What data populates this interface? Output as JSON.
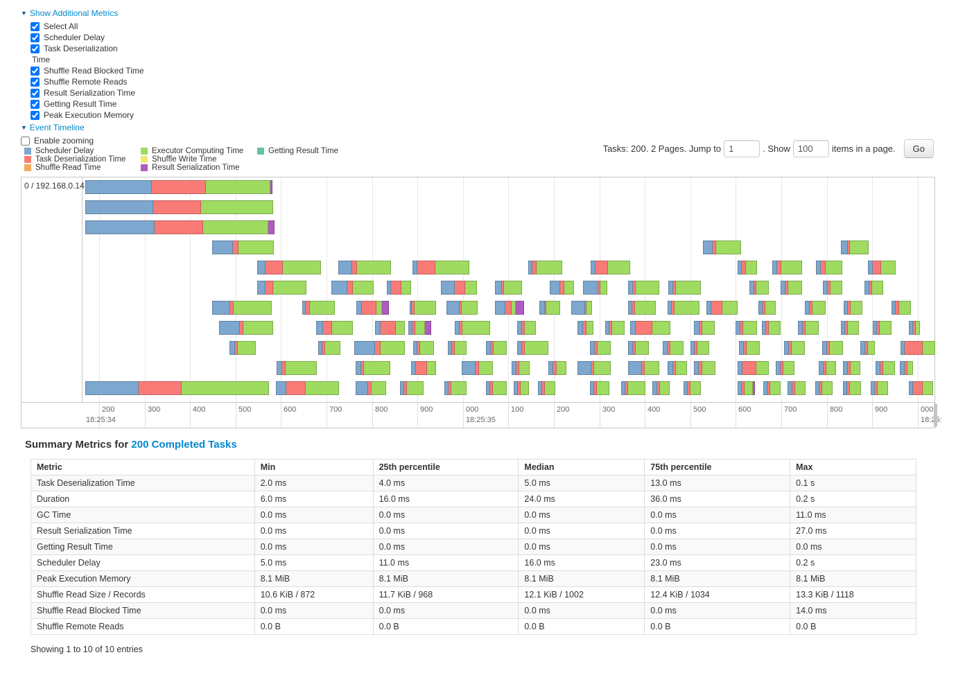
{
  "metrics_panel": {
    "title": "Show Additional Metrics",
    "items": [
      {
        "label": "Select All",
        "checked": true
      },
      {
        "label": "Scheduler Delay",
        "checked": true
      },
      {
        "label": "Task Deserialization",
        "wrap": "Time",
        "checked": true
      },
      {
        "label": "Shuffle Read Blocked Time",
        "checked": true
      },
      {
        "label": "Shuffle Remote Reads",
        "checked": true
      },
      {
        "label": "Result Serialization Time",
        "checked": true
      },
      {
        "label": "Getting Result Time",
        "checked": true
      },
      {
        "label": "Peak Execution Memory",
        "checked": true
      }
    ]
  },
  "event_timeline": {
    "title": "Event Timeline",
    "enable_zooming_label": "Enable zooming",
    "enable_zooming_checked": false
  },
  "colors": {
    "scheduler_delay": "#7DA7CE",
    "task_deserialization": "#F97B77",
    "shuffle_read": "#F5A75B",
    "executor_computing": "#9FDB61",
    "shuffle_write": "#EDEB6F",
    "result_serialization": "#AF5CBF",
    "getting_result": "#65C2A3",
    "link": "#0088cc"
  },
  "legend": {
    "items": [
      {
        "label": "Scheduler Delay",
        "key": "scheduler_delay"
      },
      {
        "label": "Task Deserialization Time",
        "key": "task_deserialization"
      },
      {
        "label": "Shuffle Read Time",
        "key": "shuffle_read"
      },
      {
        "label": "Executor Computing Time",
        "key": "executor_computing"
      },
      {
        "label": "Shuffle Write Time",
        "key": "shuffle_write"
      },
      {
        "label": "Result Serialization Time",
        "key": "result_serialization"
      },
      {
        "label": "Getting Result Time",
        "key": "getting_result"
      }
    ]
  },
  "pager": {
    "tasks_text": "Tasks: 200. 2 Pages. Jump to",
    "jump_value": "1",
    "show_text": ". Show",
    "show_value": "100",
    "items_text": "items in a page.",
    "go_label": "Go"
  },
  "timeline": {
    "group_label": "0 / 192.168.0.14",
    "axis": {
      "first_tick_ms": 200,
      "step_ms": 100,
      "tick_labels": [
        "200",
        "300",
        "400",
        "500",
        "600",
        "700",
        "800",
        "900",
        "000",
        "100",
        "200",
        "300",
        "400",
        "500",
        "600",
        "700",
        "800",
        "900",
        "000"
      ],
      "time_labels": [
        {
          "text": "18:25:34",
          "tick": 0,
          "at_left_edge": true
        },
        {
          "text": "18:25:35",
          "tick": 8
        },
        {
          "text": "18:25:",
          "tick": 18
        }
      ]
    },
    "segment_order": [
      "scheduler_delay",
      "task_deserialization",
      "executor_computing",
      "result_serialization"
    ],
    "lanes": [
      [
        [
          170,
          146,
          119,
          142,
          4
        ]
      ],
      [
        [
          170,
          149,
          105,
          159,
          0
        ]
      ],
      [
        [
          170,
          152,
          107,
          144,
          14
        ]
      ],
      [
        [
          448,
          46,
          12,
          78,
          0
        ],
        [
          1528,
          22,
          7,
          55,
          0
        ],
        [
          1831,
          15,
          5,
          41,
          0
        ]
      ],
      [
        [
          548,
          18,
          38,
          84,
          0
        ],
        [
          726,
          30,
          10,
          74,
          0
        ],
        [
          889,
          11,
          39,
          75,
          0
        ],
        [
          1144,
          9,
          9,
          56,
          0
        ],
        [
          1281,
          10,
          28,
          49,
          0
        ],
        [
          1604,
          9,
          9,
          24,
          0
        ],
        [
          1680,
          11,
          9,
          46,
          0
        ],
        [
          1776,
          11,
          10,
          37,
          0
        ],
        [
          1891,
          10,
          19,
          32,
          0
        ]
      ],
      [
        [
          548,
          19,
          17,
          73,
          0
        ],
        [
          711,
          35,
          12,
          46,
          0
        ],
        [
          833,
          9,
          23,
          21,
          0
        ],
        [
          952,
          30,
          23,
          26,
          0
        ],
        [
          1070,
          16,
          4,
          40,
          0
        ],
        [
          1191,
          23,
          9,
          21,
          0
        ],
        [
          1264,
          34,
          4,
          15,
          0
        ],
        [
          1363,
          11,
          6,
          52,
          0
        ],
        [
          1451,
          11,
          6,
          55,
          0
        ],
        [
          1630,
          11,
          4,
          28,
          0
        ],
        [
          1698,
          11,
          6,
          31,
          0
        ],
        [
          1791,
          11,
          6,
          26,
          0
        ],
        [
          1883,
          11,
          6,
          24,
          0
        ]
      ],
      [
        [
          448,
          39,
          7,
          84,
          0
        ],
        [
          647,
          7,
          9,
          55,
          0
        ],
        [
          766,
          12,
          32,
          12,
          15
        ],
        [
          883,
          5,
          6,
          47,
          0
        ],
        [
          964,
          29,
          4,
          35,
          0
        ],
        [
          1070,
          23,
          14,
          9,
          18
        ],
        [
          1168,
          12,
          3,
          31,
          0
        ],
        [
          1238,
          31,
          3,
          12,
          0
        ],
        [
          1363,
          9,
          6,
          46,
          0
        ],
        [
          1450,
          9,
          6,
          55,
          0
        ],
        [
          1535,
          10,
          24,
          34,
          0
        ],
        [
          1650,
          9,
          6,
          23,
          0
        ],
        [
          1752,
          11,
          6,
          29,
          0
        ],
        [
          1837,
          9,
          6,
          26,
          0
        ],
        [
          1942,
          9,
          7,
          26,
          0
        ]
      ],
      [
        [
          464,
          45,
          8,
          66,
          0
        ],
        [
          677,
          15,
          20,
          46,
          0
        ],
        [
          807,
          12,
          33,
          20,
          0
        ],
        [
          880,
          9,
          6,
          21,
          13
        ],
        [
          982,
          11,
          6,
          61,
          0
        ],
        [
          1119,
          11,
          6,
          24,
          0
        ],
        [
          1252,
          12,
          8,
          15,
          0
        ],
        [
          1313,
          9,
          6,
          27,
          0
        ],
        [
          1368,
          12,
          36,
          39,
          0
        ],
        [
          1508,
          12,
          6,
          28,
          0
        ],
        [
          1599,
          10,
          6,
          30,
          0
        ],
        [
          1657,
          9,
          6,
          26,
          0
        ],
        [
          1737,
          10,
          6,
          29,
          0
        ],
        [
          1831,
          9,
          6,
          25,
          0
        ],
        [
          1901,
          9,
          6,
          26,
          0
        ],
        [
          1981,
          9,
          6,
          9,
          0
        ]
      ],
      [
        [
          487,
          12,
          6,
          40,
          0
        ],
        [
          682,
          9,
          6,
          34,
          0
        ],
        [
          761,
          46,
          12,
          53,
          0
        ],
        [
          891,
          9,
          6,
          30,
          0
        ],
        [
          967,
          9,
          6,
          26,
          0
        ],
        [
          1051,
          10,
          6,
          29,
          0
        ],
        [
          1119,
          11,
          6,
          52,
          0
        ],
        [
          1279,
          11,
          6,
          29,
          0
        ],
        [
          1363,
          11,
          6,
          29,
          0
        ],
        [
          1439,
          11,
          6,
          29,
          0
        ],
        [
          1500,
          9,
          6,
          26,
          0
        ],
        [
          1607,
          11,
          6,
          29,
          0
        ],
        [
          1706,
          11,
          6,
          29,
          0
        ],
        [
          1790,
          11,
          6,
          29,
          0
        ],
        [
          1874,
          11,
          6,
          16,
          0
        ],
        [
          1962,
          9,
          40,
          27,
          0
        ]
      ],
      [
        [
          590,
          12,
          7,
          68,
          0
        ],
        [
          764,
          12,
          6,
          58,
          0
        ],
        [
          886,
          11,
          24,
          20,
          0
        ],
        [
          997,
          31,
          7,
          31,
          0
        ],
        [
          1107,
          11,
          6,
          23,
          0
        ],
        [
          1188,
          10,
          7,
          21,
          0
        ],
        [
          1252,
          30,
          6,
          37,
          0
        ],
        [
          1363,
          31,
          6,
          32,
          0
        ],
        [
          1450,
          12,
          6,
          25,
          0
        ],
        [
          1508,
          10,
          7,
          29,
          0
        ],
        [
          1604,
          10,
          31,
          28,
          0
        ],
        [
          1688,
          10,
          6,
          25,
          0
        ],
        [
          1782,
          11,
          6,
          21,
          0
        ],
        [
          1835,
          11,
          6,
          22,
          0
        ],
        [
          1907,
          11,
          6,
          26,
          0
        ],
        [
          1960,
          10,
          6,
          12,
          0
        ]
      ],
      [
        [
          170,
          118,
          95,
          192,
          0
        ],
        [
          589,
          23,
          42,
          73,
          0
        ],
        [
          764,
          27,
          7,
          32,
          0
        ],
        [
          862,
          9,
          6,
          36,
          0
        ],
        [
          959,
          9,
          6,
          34,
          0
        ],
        [
          1051,
          9,
          6,
          30,
          0
        ],
        [
          1112,
          9,
          6,
          18,
          0
        ],
        [
          1165,
          9,
          6,
          23,
          0
        ],
        [
          1279,
          9,
          6,
          28,
          0
        ],
        [
          1348,
          9,
          6,
          38,
          0
        ],
        [
          1416,
          10,
          6,
          22,
          0
        ],
        [
          1485,
          9,
          6,
          23,
          0
        ],
        [
          1604,
          9,
          6,
          18,
          5
        ],
        [
          1660,
          9,
          6,
          23,
          0
        ],
        [
          1713,
          10,
          6,
          23,
          0
        ],
        [
          1774,
          9,
          6,
          23,
          0
        ],
        [
          1835,
          9,
          6,
          24,
          0
        ],
        [
          1896,
          9,
          6,
          23,
          0
        ],
        [
          1981,
          9,
          21,
          23,
          0
        ]
      ]
    ]
  },
  "summary": {
    "title_prefix": "Summary Metrics for ",
    "title_link": "200 Completed Tasks",
    "columns": [
      "Metric",
      "Min",
      "25th percentile",
      "Median",
      "75th percentile",
      "Max"
    ],
    "rows": [
      [
        "Task Deserialization Time",
        "2.0 ms",
        "4.0 ms",
        "5.0 ms",
        "13.0 ms",
        "0.1 s"
      ],
      [
        "Duration",
        "6.0 ms",
        "16.0 ms",
        "24.0 ms",
        "36.0 ms",
        "0.2 s"
      ],
      [
        "GC Time",
        "0.0 ms",
        "0.0 ms",
        "0.0 ms",
        "0.0 ms",
        "11.0 ms"
      ],
      [
        "Result Serialization Time",
        "0.0 ms",
        "0.0 ms",
        "0.0 ms",
        "0.0 ms",
        "27.0 ms"
      ],
      [
        "Getting Result Time",
        "0.0 ms",
        "0.0 ms",
        "0.0 ms",
        "0.0 ms",
        "0.0 ms"
      ],
      [
        "Scheduler Delay",
        "5.0 ms",
        "11.0 ms",
        "16.0 ms",
        "23.0 ms",
        "0.2 s"
      ],
      [
        "Peak Execution Memory",
        "8.1 MiB",
        "8.1 MiB",
        "8.1 MiB",
        "8.1 MiB",
        "8.1 MiB"
      ],
      [
        "Shuffle Read Size / Records",
        "10.6 KiB / 872",
        "11.7 KiB / 968",
        "12.1 KiB / 1002",
        "12.4 KiB / 1034",
        "13.3 KiB / 1118"
      ],
      [
        "Shuffle Read Blocked Time",
        "0.0 ms",
        "0.0 ms",
        "0.0 ms",
        "0.0 ms",
        "14.0 ms"
      ],
      [
        "Shuffle Remote Reads",
        "0.0 B",
        "0.0 B",
        "0.0 B",
        "0.0 B",
        "0.0 B"
      ]
    ],
    "footer": "Showing 1 to 10 of 10 entries"
  }
}
